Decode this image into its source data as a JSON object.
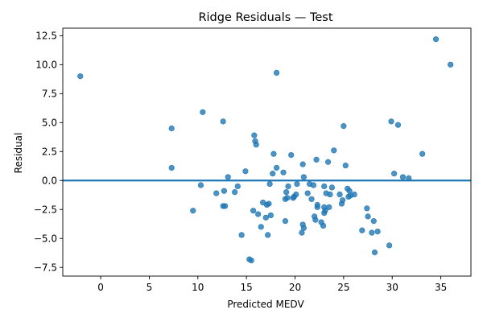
{
  "chart_data": {
    "type": "scatter",
    "title": "Ridge Residuals — Test",
    "xlabel": "Predicted MEDV",
    "ylabel": "Residual",
    "xlim": [
      -3.9,
      38.1
    ],
    "ylim": [
      -8.25,
      13.15
    ],
    "x_ticks": [
      0,
      5,
      10,
      15,
      20,
      25,
      30,
      35
    ],
    "x_tick_labels": [
      "0",
      "5",
      "10",
      "15",
      "20",
      "25",
      "30",
      "35"
    ],
    "y_ticks": [
      -7.5,
      -5.0,
      -2.5,
      0.0,
      2.5,
      5.0,
      7.5,
      10.0,
      12.5
    ],
    "y_tick_labels": [
      "−7.5",
      "−5.0",
      "−2.5",
      "0.0",
      "2.5",
      "5.0",
      "7.5",
      "10.0",
      "12.5"
    ],
    "reference_line": {
      "y": 0,
      "color": "#1f77b4"
    },
    "marker_color": "#1f77b4",
    "marker_opacity": 0.8,
    "grid": false,
    "points": [
      [
        -2.1,
        9.0
      ],
      [
        7.3,
        4.5
      ],
      [
        7.3,
        1.1
      ],
      [
        9.5,
        -2.6
      ],
      [
        10.3,
        -0.4
      ],
      [
        10.5,
        5.9
      ],
      [
        11.9,
        -1.1
      ],
      [
        12.6,
        5.1
      ],
      [
        12.6,
        -2.2
      ],
      [
        12.8,
        -2.2
      ],
      [
        12.7,
        -0.9
      ],
      [
        13.1,
        0.3
      ],
      [
        13.8,
        -1.0
      ],
      [
        14.1,
        -0.5
      ],
      [
        14.5,
        -4.7
      ],
      [
        14.9,
        0.8
      ],
      [
        15.3,
        -6.8
      ],
      [
        15.5,
        -6.9
      ],
      [
        15.7,
        -2.6
      ],
      [
        15.8,
        3.9
      ],
      [
        15.9,
        3.4
      ],
      [
        16.0,
        3.1
      ],
      [
        16.2,
        -2.9
      ],
      [
        16.5,
        -4.0
      ],
      [
        16.7,
        -1.9
      ],
      [
        17.0,
        -3.2
      ],
      [
        17.1,
        -2.1
      ],
      [
        17.2,
        -4.7
      ],
      [
        17.3,
        -2.0
      ],
      [
        17.4,
        -0.3
      ],
      [
        17.5,
        -3.0
      ],
      [
        17.7,
        0.6
      ],
      [
        17.8,
        2.3
      ],
      [
        18.1,
        9.3
      ],
      [
        18.1,
        1.1
      ],
      [
        18.8,
        0.7
      ],
      [
        19.0,
        -1.6
      ],
      [
        19.0,
        -3.5
      ],
      [
        19.1,
        -1.0
      ],
      [
        19.2,
        -1.5
      ],
      [
        19.3,
        -0.5
      ],
      [
        19.6,
        2.2
      ],
      [
        19.8,
        -1.5
      ],
      [
        19.9,
        -1.4
      ],
      [
        20.1,
        -1.2
      ],
      [
        20.2,
        -0.3
      ],
      [
        20.7,
        -4.5
      ],
      [
        20.8,
        1.4
      ],
      [
        20.8,
        -3.8
      ],
      [
        20.9,
        -4.1
      ],
      [
        20.9,
        0.3
      ],
      [
        21.3,
        -1.1
      ],
      [
        21.5,
        -0.3
      ],
      [
        21.7,
        -1.6
      ],
      [
        21.9,
        -0.4
      ],
      [
        22.0,
        -3.1
      ],
      [
        22.1,
        -3.4
      ],
      [
        22.2,
        1.8
      ],
      [
        22.3,
        -2.1
      ],
      [
        22.3,
        -2.3
      ],
      [
        22.7,
        -3.6
      ],
      [
        22.9,
        -3.9
      ],
      [
        23.0,
        -0.5
      ],
      [
        23.0,
        -2.3
      ],
      [
        23.0,
        -2.8
      ],
      [
        23.1,
        -2.6
      ],
      [
        23.2,
        -1.1
      ],
      [
        23.4,
        1.6
      ],
      [
        23.5,
        -2.3
      ],
      [
        23.6,
        -1.2
      ],
      [
        23.8,
        -0.6
      ],
      [
        24.0,
        2.6
      ],
      [
        24.6,
        -1.2
      ],
      [
        24.8,
        -2.0
      ],
      [
        24.9,
        -1.7
      ],
      [
        25.0,
        4.7
      ],
      [
        25.2,
        1.3
      ],
      [
        25.4,
        -0.7
      ],
      [
        25.5,
        -1.4
      ],
      [
        25.6,
        -0.9
      ],
      [
        25.7,
        -1.3
      ],
      [
        26.1,
        -1.2
      ],
      [
        26.9,
        -4.3
      ],
      [
        27.4,
        -2.4
      ],
      [
        27.5,
        -3.1
      ],
      [
        27.9,
        -4.5
      ],
      [
        28.1,
        -3.5
      ],
      [
        28.2,
        -6.2
      ],
      [
        28.5,
        -4.4
      ],
      [
        29.7,
        -5.6
      ],
      [
        29.9,
        5.1
      ],
      [
        30.2,
        0.6
      ],
      [
        30.6,
        4.8
      ],
      [
        31.1,
        0.3
      ],
      [
        31.7,
        0.2
      ],
      [
        33.1,
        2.3
      ],
      [
        34.5,
        12.2
      ],
      [
        36.0,
        10.0
      ]
    ]
  }
}
